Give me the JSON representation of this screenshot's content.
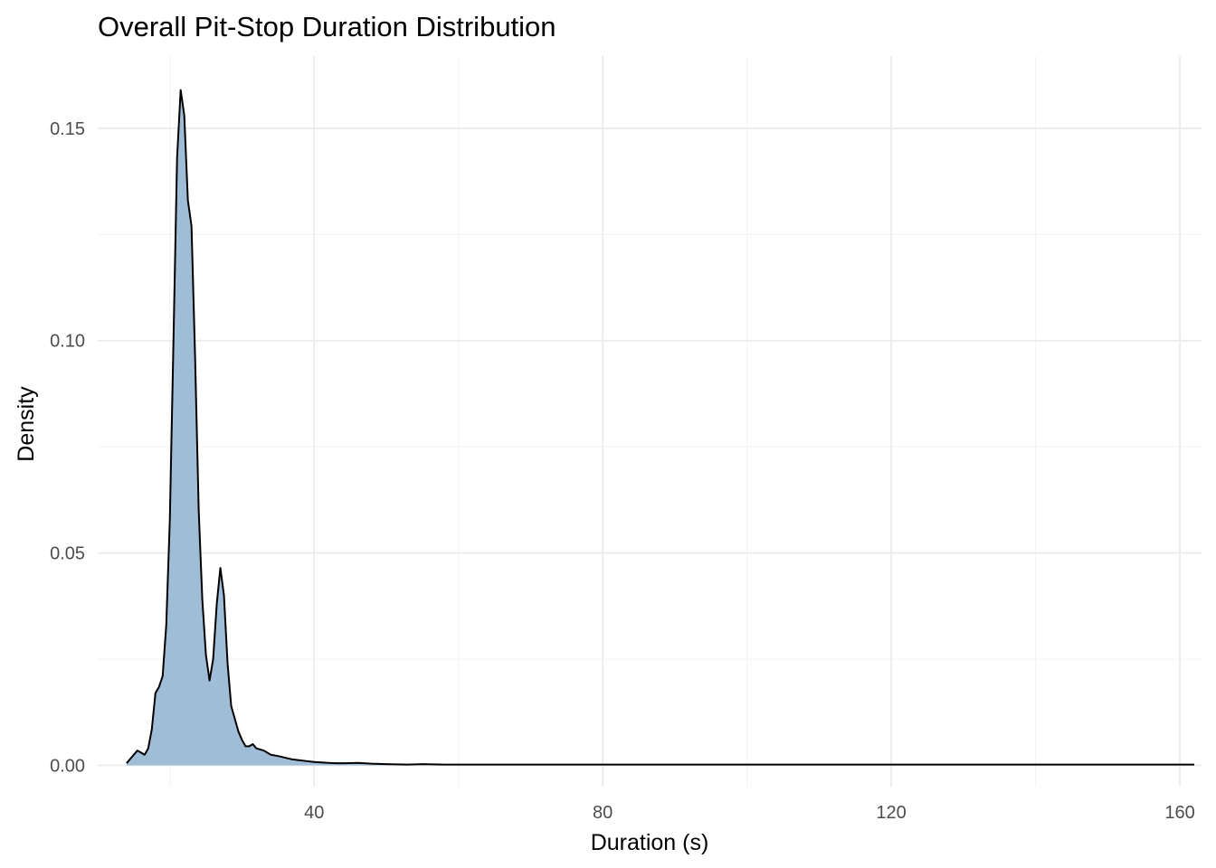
{
  "chart_data": {
    "type": "area",
    "title": "Overall Pit-Stop Duration Distribution",
    "xlabel": "Duration (s)",
    "ylabel": "Density",
    "xlim": [
      10,
      163
    ],
    "ylim": [
      -0.005,
      0.167
    ],
    "x_ticks": [
      40,
      80,
      120,
      160
    ],
    "x_tick_labels": [
      "40",
      "80",
      "120",
      "160"
    ],
    "y_ticks": [
      0.0,
      0.05,
      0.1,
      0.15
    ],
    "y_tick_labels": [
      "0.00",
      "0.05",
      "0.10",
      "0.15"
    ],
    "grid": true,
    "fill_color": "#a0bdd8",
    "line_color": "#000000",
    "series": [
      {
        "x": [
          14.0,
          15.0,
          15.5,
          16.0,
          16.5,
          17.0,
          17.5,
          18.0,
          18.5,
          19.0,
          19.5,
          20.0,
          20.5,
          21.0,
          21.5,
          22.0,
          22.5,
          23.0,
          23.5,
          24.0,
          24.5,
          25.0,
          25.5,
          26.0,
          26.5,
          27.0,
          27.5,
          28.0,
          28.5,
          29.0,
          29.5,
          30.0,
          30.5,
          31.0,
          31.5,
          32.0,
          33.0,
          34.0,
          35.0,
          36.0,
          37.0,
          38.0,
          39.0,
          40.0,
          41.0,
          42.0,
          43.0,
          44.0,
          46.0,
          48.0,
          50.0,
          53.0,
          55.0,
          58.0,
          60.0,
          65.0,
          70.0,
          75.0,
          80.0,
          85.0,
          90.0,
          95.0,
          100.0,
          105.0,
          110.0,
          115.0,
          120.0,
          125.0,
          130.0,
          135.0,
          140.0,
          145.0,
          150.0,
          155.0,
          160.0,
          162.0
        ],
        "y": [
          0.0005,
          0.0025,
          0.0035,
          0.003,
          0.0025,
          0.004,
          0.0085,
          0.017,
          0.0185,
          0.021,
          0.033,
          0.058,
          0.1,
          0.143,
          0.159,
          0.153,
          0.133,
          0.127,
          0.096,
          0.06,
          0.039,
          0.026,
          0.02,
          0.025,
          0.038,
          0.0465,
          0.04,
          0.024,
          0.014,
          0.011,
          0.008,
          0.006,
          0.0045,
          0.0045,
          0.005,
          0.004,
          0.0035,
          0.0025,
          0.0022,
          0.0018,
          0.0014,
          0.0012,
          0.001,
          0.0008,
          0.0007,
          0.0006,
          0.0005,
          0.0005,
          0.0006,
          0.0004,
          0.0003,
          0.0002,
          0.0003,
          0.0002,
          0.0002,
          0.0002,
          0.0002,
          0.0002,
          0.0002,
          0.0002,
          0.0002,
          0.0002,
          0.0002,
          0.0002,
          0.0002,
          0.0002,
          0.0002,
          0.0002,
          0.0002,
          0.0002,
          0.0002,
          0.0002,
          0.0002,
          0.0002,
          0.0002,
          0.0002
        ]
      }
    ]
  }
}
